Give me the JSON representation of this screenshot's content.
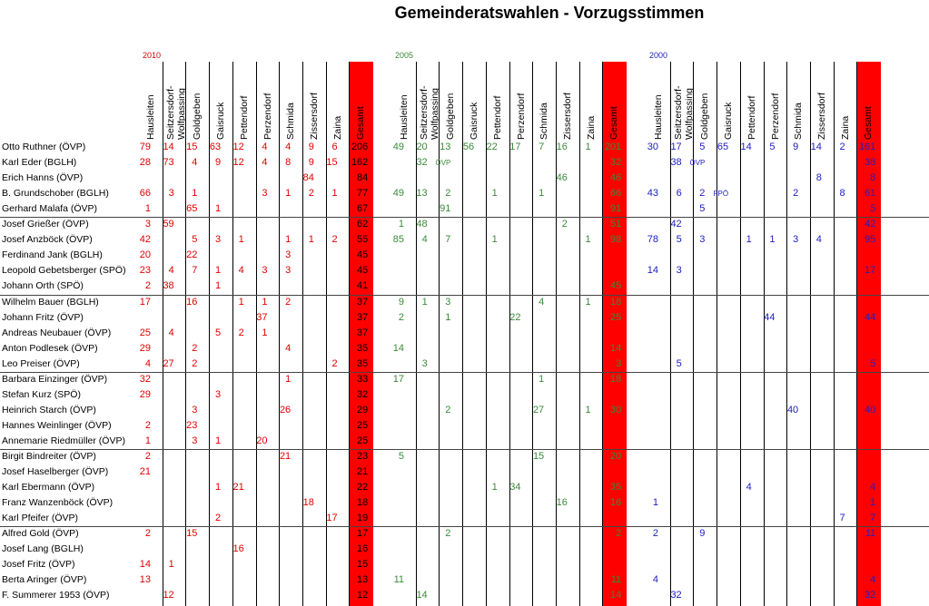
{
  "title": "Gemeinderatswahlen - Vorzugsstimmen",
  "colors": {
    "red": "#e00000",
    "green": "#3a8a3a",
    "blue": "#2020c0",
    "gesamt_bg": "#ff0000"
  },
  "years": [
    {
      "label": "2010",
      "color": "red"
    },
    {
      "label": "2005",
      "color": "green"
    },
    {
      "label": "2000",
      "color": "blue"
    }
  ],
  "columns": [
    "Hausleiten",
    "Seitzersdorf-Wolfpassing",
    "Goldgeben",
    "Gaisruck",
    "Pettendorf",
    "Perzendorf",
    "Schmida",
    "Zissersdorf",
    "Zaina",
    "Gesamt"
  ],
  "rows": [
    {
      "name": "Otto Ruthner (ÖVP)",
      "y2010": [
        "79",
        "14",
        "15",
        "63",
        "12",
        "4",
        "4",
        "9",
        "6",
        "206"
      ],
      "y2005": [
        "49",
        "20",
        "13",
        "56",
        "22",
        "17",
        "7",
        "16",
        "1",
        "201"
      ],
      "y2000": [
        "30",
        "17",
        "5",
        "65",
        "14",
        "5",
        "9",
        "14",
        "2",
        "161"
      ]
    },
    {
      "name": "Karl Eder (BGLH)",
      "y2010": [
        "28",
        "73",
        "4",
        "9",
        "12",
        "4",
        "8",
        "9",
        "15",
        "162"
      ],
      "y2005": [
        "",
        "32",
        "ÖVP",
        "",
        "",
        "",
        "",
        "",
        "",
        "32"
      ],
      "y2000": [
        "",
        "38",
        "ÖVP",
        "",
        "",
        "",
        "",
        "",
        "",
        "38"
      ]
    },
    {
      "name": "Erich Hanns (ÖVP)",
      "y2010": [
        "",
        "",
        "",
        "",
        "",
        "",
        "",
        "84",
        "",
        "84"
      ],
      "y2005": [
        "",
        "",
        "",
        "",
        "",
        "",
        "",
        "46",
        "",
        "46"
      ],
      "y2000": [
        "",
        "",
        "",
        "",
        "",
        "",
        "",
        "8",
        "",
        "8"
      ]
    },
    {
      "name": "B. Grundschober (BGLH)",
      "y2010": [
        "66",
        "3",
        "1",
        "",
        "",
        "3",
        "1",
        "2",
        "1",
        "77"
      ],
      "y2005": [
        "49",
        "13",
        "2",
        "",
        "1",
        "",
        "1",
        "",
        "",
        "66"
      ],
      "y2000": [
        "43",
        "6",
        "2",
        "FPÖ",
        "",
        "",
        "2",
        "",
        "8",
        "61"
      ]
    },
    {
      "name": "Gerhard Malafa (ÖVP)",
      "y2010": [
        "1",
        "",
        "65",
        "1",
        "",
        "",
        "",
        "",
        "",
        "67"
      ],
      "y2005": [
        "",
        "",
        "91",
        "",
        "",
        "",
        "",
        "",
        "",
        "91"
      ],
      "y2000": [
        "",
        "",
        "5",
        "",
        "",
        "",
        "",
        "",
        "",
        "5"
      ]
    },
    {
      "name": "Josef Grießer (ÖVP)",
      "y2010": [
        "3",
        "59",
        "",
        "",
        "",
        "",
        "",
        "",
        "",
        "62"
      ],
      "y2005": [
        "1",
        "48",
        "",
        "",
        "",
        "",
        "",
        "2",
        "",
        "51"
      ],
      "y2000": [
        "",
        "42",
        "",
        "",
        "",
        "",
        "",
        "",
        "",
        "42"
      ]
    },
    {
      "name": "Josef Anzböck (ÖVP)",
      "y2010": [
        "42",
        "",
        "5",
        "3",
        "1",
        "",
        "1",
        "1",
        "2",
        "55"
      ],
      "y2005": [
        "85",
        "4",
        "7",
        "",
        "1",
        "",
        "",
        "",
        "1",
        "98"
      ],
      "y2000": [
        "78",
        "5",
        "3",
        "",
        "1",
        "1",
        "3",
        "4",
        "",
        "95"
      ]
    },
    {
      "name": "Ferdinand Jank (BGLH)",
      "y2010": [
        "20",
        "",
        "22",
        "",
        "",
        "",
        "3",
        "",
        "",
        "45"
      ],
      "y2005": [
        "",
        "",
        "",
        "",
        "",
        "",
        "",
        "",
        "",
        ""
      ],
      "y2000": [
        "",
        "",
        "",
        "",
        "",
        "",
        "",
        "",
        "",
        ""
      ]
    },
    {
      "name": "Leopold Gebetsberger (SPÖ)",
      "y2010": [
        "23",
        "4",
        "7",
        "1",
        "4",
        "3",
        "3",
        "",
        "",
        "45"
      ],
      "y2005": [
        "",
        "",
        "",
        "",
        "",
        "",
        "",
        "",
        "",
        ""
      ],
      "y2000": [
        "14",
        "3",
        "",
        "",
        "",
        "",
        "",
        "",
        "",
        "17"
      ]
    },
    {
      "name": "Johann Orth (SPÖ)",
      "y2010": [
        "2",
        "38",
        "",
        "1",
        "",
        "",
        "",
        "",
        "",
        "41"
      ],
      "y2005": [
        "",
        "",
        "",
        "",
        "",
        "",
        "",
        "",
        "",
        "45"
      ],
      "y2000": [
        "",
        "",
        "",
        "",
        "",
        "",
        "",
        "",
        "",
        ""
      ]
    },
    {
      "name": "Wilhelm Bauer (BGLH)",
      "y2010": [
        "17",
        "",
        "16",
        "",
        "1",
        "1",
        "2",
        "",
        "",
        "37"
      ],
      "y2005": [
        "9",
        "1",
        "3",
        "",
        "",
        "",
        "4",
        "",
        "1",
        "18"
      ],
      "y2000": [
        "",
        "",
        "",
        "",
        "",
        "",
        "",
        "",
        "",
        ""
      ]
    },
    {
      "name": "Johann Fritz (ÖVP)",
      "y2010": [
        "",
        "",
        "",
        "",
        "",
        "37",
        "",
        "",
        "",
        "37"
      ],
      "y2005": [
        "2",
        "",
        "1",
        "",
        "",
        "22",
        "",
        "",
        "",
        "25"
      ],
      "y2000": [
        "",
        "",
        "",
        "",
        "",
        "44",
        "",
        "",
        "",
        "44"
      ]
    },
    {
      "name": "Andreas Neubauer (ÖVP)",
      "y2010": [
        "25",
        "4",
        "",
        "5",
        "2",
        "1",
        "",
        "",
        "",
        "37"
      ],
      "y2005": [
        "",
        "",
        "",
        "",
        "",
        "",
        "",
        "",
        "",
        ""
      ],
      "y2000": [
        "",
        "",
        "",
        "",
        "",
        "",
        "",
        "",
        "",
        ""
      ]
    },
    {
      "name": "Anton Podlesek (ÖVP)",
      "y2010": [
        "29",
        "",
        "2",
        "",
        "",
        "",
        "4",
        "",
        "",
        "35"
      ],
      "y2005": [
        "14",
        "",
        "",
        "",
        "",
        "",
        "",
        "",
        "",
        "14"
      ],
      "y2000": [
        "",
        "",
        "",
        "",
        "",
        "",
        "",
        "",
        "",
        ""
      ]
    },
    {
      "name": "Leo Preiser (ÖVP)",
      "y2010": [
        "4",
        "27",
        "2",
        "",
        "",
        "",
        "",
        "",
        "2",
        "35"
      ],
      "y2005": [
        "",
        "3",
        "",
        "",
        "",
        "",
        "",
        "",
        "",
        "3"
      ],
      "y2000": [
        "",
        "5",
        "",
        "",
        "",
        "",
        "",
        "",
        "",
        "5"
      ]
    },
    {
      "name": "Barbara Einzinger (ÖVP)",
      "y2010": [
        "32",
        "",
        "",
        "",
        "",
        "",
        "1",
        "",
        "",
        "33"
      ],
      "y2005": [
        "17",
        "",
        "",
        "",
        "",
        "",
        "1",
        "",
        "",
        "18"
      ],
      "y2000": [
        "",
        "",
        "",
        "",
        "",
        "",
        "",
        "",
        "",
        ""
      ]
    },
    {
      "name": "Stefan Kurz (SPÖ)",
      "y2010": [
        "29",
        "",
        "",
        "3",
        "",
        "",
        "",
        "",
        "",
        "32"
      ],
      "y2005": [
        "",
        "",
        "",
        "",
        "",
        "",
        "",
        "",
        "",
        ""
      ],
      "y2000": [
        "",
        "",
        "",
        "",
        "",
        "",
        "",
        "",
        "",
        ""
      ]
    },
    {
      "name": "Heinrich Starch (ÖVP)",
      "y2010": [
        "",
        "",
        "3",
        "",
        "",
        "",
        "26",
        "",
        "",
        "29"
      ],
      "y2005": [
        "",
        "",
        "2",
        "",
        "",
        "",
        "27",
        "",
        "1",
        "30"
      ],
      "y2000": [
        "",
        "",
        "",
        "",
        "",
        "",
        "40",
        "",
        "",
        "40"
      ]
    },
    {
      "name": "Hannes Weinlinger (ÖVP)",
      "y2010": [
        "2",
        "",
        "23",
        "",
        "",
        "",
        "",
        "",
        "",
        "25"
      ],
      "y2005": [
        "",
        "",
        "",
        "",
        "",
        "",
        "",
        "",
        "",
        ""
      ],
      "y2000": [
        "",
        "",
        "",
        "",
        "",
        "",
        "",
        "",
        "",
        ""
      ]
    },
    {
      "name": "Annemarie Riedmüller (ÖVP)",
      "y2010": [
        "1",
        "",
        "3",
        "1",
        "",
        "20",
        "",
        "",
        "",
        "25"
      ],
      "y2005": [
        "",
        "",
        "",
        "",
        "",
        "",
        "",
        "",
        "",
        ""
      ],
      "y2000": [
        "",
        "",
        "",
        "",
        "",
        "",
        "",
        "",
        "",
        ""
      ]
    },
    {
      "name": "Birgit Bindreiter (ÖVP)",
      "y2010": [
        "2",
        "",
        "",
        "",
        "",
        "",
        "21",
        "",
        "",
        "23"
      ],
      "y2005": [
        "5",
        "",
        "",
        "",
        "",
        "",
        "15",
        "",
        "",
        "20"
      ],
      "y2000": [
        "",
        "",
        "",
        "",
        "",
        "",
        "",
        "",
        "",
        ""
      ]
    },
    {
      "name": "Josef Haselberger (ÖVP)",
      "y2010": [
        "21",
        "",
        "",
        "",
        "",
        "",
        "",
        "",
        "",
        "21"
      ],
      "y2005": [
        "",
        "",
        "",
        "",
        "",
        "",
        "",
        "",
        "",
        ""
      ],
      "y2000": [
        "",
        "",
        "",
        "",
        "",
        "",
        "",
        "",
        "",
        ""
      ]
    },
    {
      "name": "Karl Ebermann (ÖVP)",
      "y2010": [
        "",
        "",
        "",
        "1",
        "21",
        "",
        "",
        "",
        "",
        "22"
      ],
      "y2005": [
        "",
        "",
        "",
        "",
        "1",
        "34",
        "",
        "",
        "",
        "35"
      ],
      "y2000": [
        "",
        "",
        "",
        "",
        "4",
        "",
        "",
        "",
        "",
        "4"
      ]
    },
    {
      "name": "Franz Wanzenböck (ÖVP)",
      "y2010": [
        "",
        "",
        "",
        "",
        "",
        "",
        "",
        "18",
        "",
        "18"
      ],
      "y2005": [
        "",
        "",
        "",
        "",
        "",
        "",
        "",
        "16",
        "",
        "16"
      ],
      "y2000": [
        "1",
        "",
        "",
        "",
        "",
        "",
        "",
        "",
        "",
        "1"
      ]
    },
    {
      "name": "Karl Pfeifer (ÖVP)",
      "y2010": [
        "",
        "",
        "",
        "2",
        "",
        "",
        "",
        "",
        "17",
        "19"
      ],
      "y2005": [
        "",
        "",
        "",
        "",
        "",
        "",
        "",
        "",
        "",
        ""
      ],
      "y2000": [
        "",
        "",
        "",
        "",
        "",
        "",
        "",
        "",
        "7",
        "7"
      ]
    },
    {
      "name": "Alfred Gold (ÖVP)",
      "y2010": [
        "2",
        "",
        "15",
        "",
        "",
        "",
        "",
        "",
        "",
        "17"
      ],
      "y2005": [
        "",
        "",
        "2",
        "",
        "",
        "",
        "",
        "",
        "",
        "2"
      ],
      "y2000": [
        "2",
        "",
        "9",
        "",
        "",
        "",
        "",
        "",
        "",
        "11"
      ]
    },
    {
      "name": "Josef Lang (BGLH)",
      "y2010": [
        "",
        "",
        "",
        "",
        "16",
        "",
        "",
        "",
        "",
        "16"
      ],
      "y2005": [
        "",
        "",
        "",
        "",
        "",
        "",
        "",
        "",
        "",
        ""
      ],
      "y2000": [
        "",
        "",
        "",
        "",
        "",
        "",
        "",
        "",
        "",
        ""
      ]
    },
    {
      "name": "Josef Fritz (ÖVP)",
      "y2010": [
        "14",
        "1",
        "",
        "",
        "",
        "",
        "",
        "",
        "",
        "15"
      ],
      "y2005": [
        "",
        "",
        "",
        "",
        "",
        "",
        "",
        "",
        "",
        ""
      ],
      "y2000": [
        "",
        "",
        "",
        "",
        "",
        "",
        "",
        "",
        "",
        ""
      ]
    },
    {
      "name": "Berta Aringer (ÖVP)",
      "y2010": [
        "13",
        "",
        "",
        "",
        "",
        "",
        "",
        "",
        "",
        "13"
      ],
      "y2005": [
        "11",
        "",
        "",
        "",
        "",
        "",
        "",
        "",
        "",
        "11"
      ],
      "y2000": [
        "4",
        "",
        "",
        "",
        "",
        "",
        "",
        "",
        "",
        "4"
      ]
    },
    {
      "name": "F. Summerer 1953 (ÖVP)",
      "y2010": [
        "",
        "12",
        "",
        "",
        "",
        "",
        "",
        "",
        "",
        "12"
      ],
      "y2005": [
        "",
        "14",
        "",
        "",
        "",
        "",
        "",
        "",
        "",
        "14"
      ],
      "y2000": [
        "",
        "32",
        "",
        "",
        "",
        "",
        "",
        "",
        "",
        "32"
      ]
    }
  ]
}
